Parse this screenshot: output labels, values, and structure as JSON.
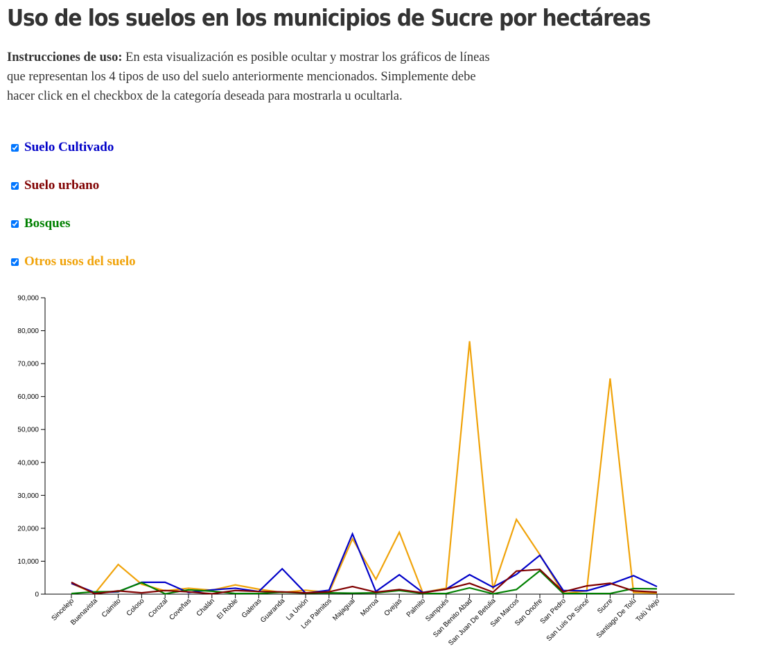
{
  "page": {
    "title": "Uso de los suelos en los municipios de Sucre por hectáreas",
    "instructions_lead": "Instrucciones de uso:",
    "instructions_text": " En esta visualización es posible ocultar y mostrar los gráficos de líneas que representan los 4 tipos de uso del suelo anteriormente mencionados. Simplemente debe hacer click en el checkbox de la categoría deseada para mostrarla u ocultarla."
  },
  "toggles": [
    {
      "label": "Suelo Cultivado",
      "color": "#0000c8",
      "checked": true
    },
    {
      "label": "Suelo urbano",
      "color": "#800000",
      "checked": true
    },
    {
      "label": "Bosques",
      "color": "#008000",
      "checked": true
    },
    {
      "label": "Otros usos del suelo",
      "color": "#f0a30a",
      "checked": true
    }
  ],
  "chart_data": {
    "type": "line",
    "title": "",
    "xlabel": "",
    "ylabel": "",
    "ylim": [
      0,
      90000
    ],
    "yticks": [
      "0",
      "10,000",
      "20,000",
      "30,000",
      "40,000",
      "50,000",
      "60,000",
      "70,000",
      "80,000",
      "90,000"
    ],
    "grid": false,
    "categories": [
      "Sincelejo",
      "Buenavista",
      "Caimito",
      "Coloso",
      "Corozal",
      "Coveñas",
      "Chalán",
      "El Roble",
      "Galeras",
      "Guaranda",
      "La Unión",
      "Los Palmitos",
      "Majagual",
      "Morroa",
      "Ovejas",
      "Palmito",
      "Sampués",
      "San Benito Abad",
      "San Juan De Betulia",
      "San Marcos",
      "San Onofre",
      "San Pedro",
      "San Luis De Sincé",
      "Sucre",
      "Santiago De Tolú",
      "Tolú Viejo"
    ],
    "series": [
      {
        "name": "Otros usos del suelo",
        "color": "#f0a30a",
        "values": [
          3200,
          200,
          9000,
          3000,
          1000,
          1800,
          1200,
          2800,
          1500,
          500,
          1200,
          500,
          16800,
          4500,
          18800,
          500,
          1800,
          76800,
          1500,
          22700,
          12000,
          200,
          1000,
          65500,
          500,
          300
        ]
      },
      {
        "name": "Suelo Cultivado",
        "color": "#0000c8",
        "values": [
          3300,
          500,
          700,
          3600,
          3600,
          500,
          1300,
          1800,
          800,
          7700,
          300,
          1200,
          18300,
          800,
          5900,
          500,
          1500,
          5900,
          2100,
          6000,
          11800,
          1100,
          1000,
          3000,
          5600,
          2300
        ]
      },
      {
        "name": "Bosques",
        "color": "#008000",
        "values": [
          200,
          700,
          800,
          3500,
          100,
          1300,
          900,
          200,
          200,
          600,
          300,
          400,
          300,
          400,
          1100,
          200,
          200,
          1900,
          100,
          1400,
          7100,
          200,
          200,
          200,
          1700,
          1600
        ]
      },
      {
        "name": "Suelo urbano",
        "color": "#800000",
        "values": [
          3600,
          100,
          1000,
          400,
          1100,
          700,
          100,
          1100,
          800,
          700,
          400,
          700,
          2300,
          600,
          1400,
          400,
          1500,
          3300,
          600,
          7000,
          7500,
          700,
          2500,
          3300,
          1000,
          600
        ]
      }
    ]
  }
}
